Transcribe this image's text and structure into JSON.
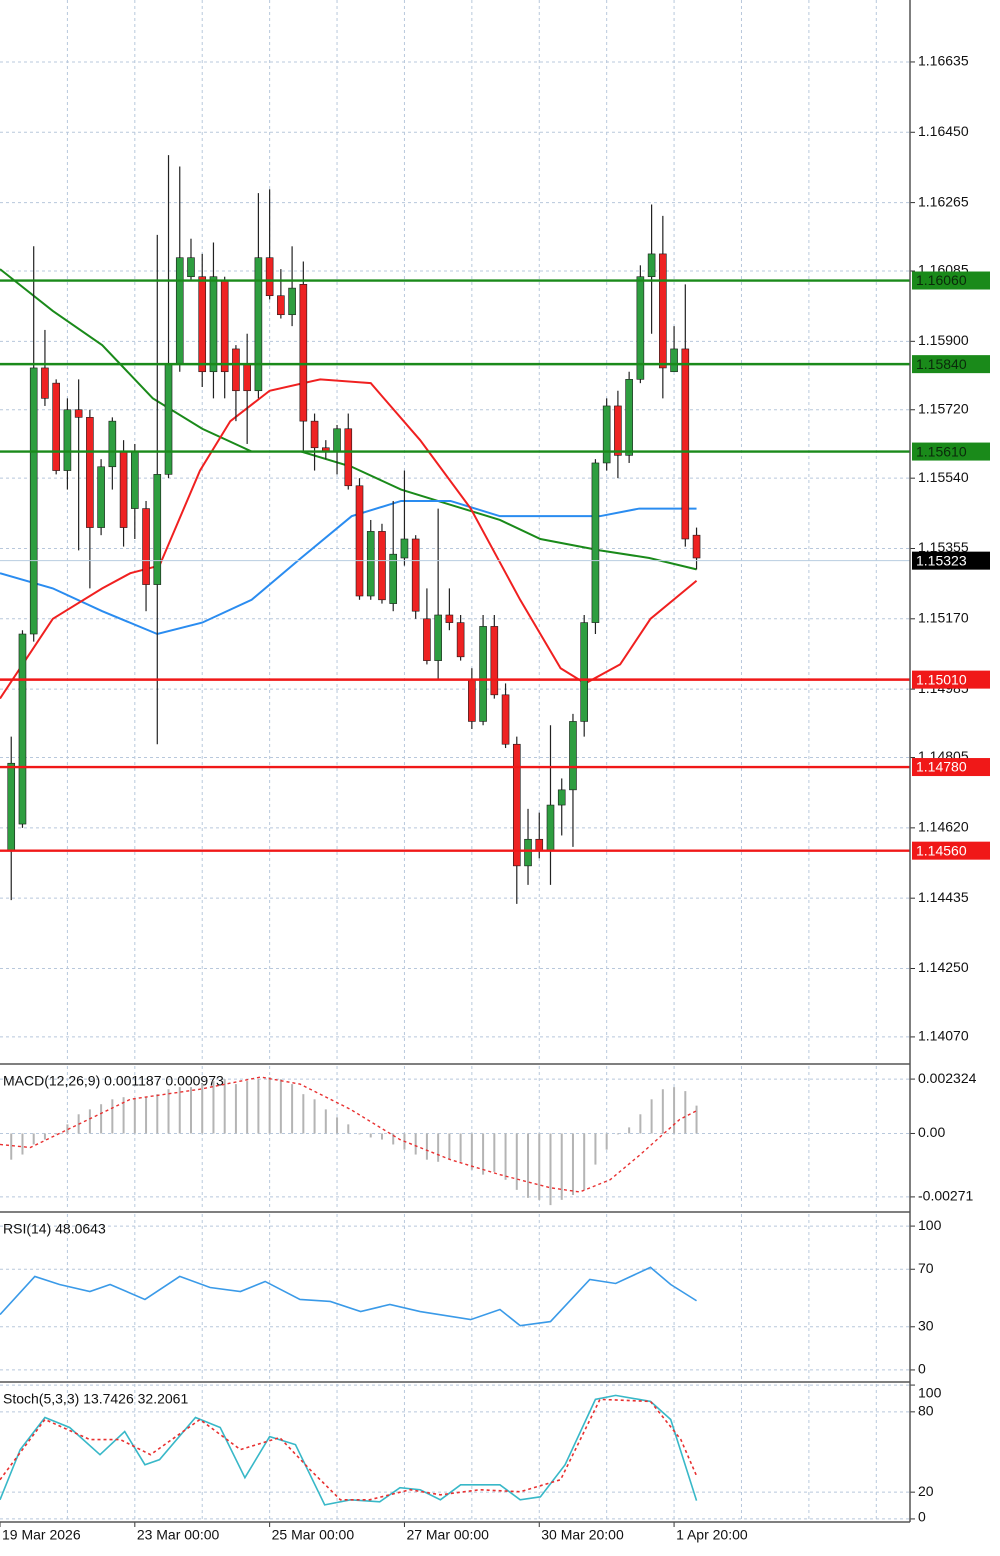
{
  "chart_data": [
    {
      "type": "candlestick",
      "xlim": [
        -1,
        80
      ],
      "ylim": [
        1.14004,
        1.16798
      ],
      "xticks": [
        {
          "value": -1,
          "label": "19 Mar 2026"
        },
        {
          "value": 11,
          "label": "23 Mar 00:00"
        },
        {
          "value": 23,
          "label": "25 Mar 00:00"
        },
        {
          "value": 35,
          "label": "27 Mar 00:00"
        },
        {
          "value": 47,
          "label": "30 Mar 20:00"
        },
        {
          "value": 59,
          "label": "1 Apr 20:00"
        }
      ],
      "xgrid": [
        5,
        11,
        17,
        23,
        29,
        35,
        41,
        47,
        53,
        59,
        65,
        71,
        77
      ],
      "yticks": [
        1.16635,
        {
          "value": 1.1645,
          "label": "1.16450"
        },
        1.16265,
        1.16085,
        {
          "value": 1.159,
          "label": "1.15900"
        },
        {
          "value": 1.1572,
          "label": "1.15720"
        },
        {
          "value": 1.1554,
          "label": "1.15540"
        },
        1.15355,
        {
          "value": 1.1517,
          "label": "1.15170"
        },
        1.14985,
        1.14805,
        {
          "value": 1.1462,
          "label": "1.14620"
        },
        1.14435,
        {
          "value": 1.1425,
          "label": "1.14250"
        },
        {
          "value": 1.1407,
          "label": "1.14070"
        }
      ],
      "up_color": "#2e9e40",
      "down_color": "#ee2222",
      "open": [
        1.1456,
        1.1463,
        1.1513,
        1.1583,
        1.1579,
        1.1556,
        1.1572,
        1.157,
        1.1541,
        1.1557,
        1.1561,
        1.1546,
        1.1546,
        1.1526,
        1.1555,
        1.1584,
        1.1607,
        1.1607,
        1.1582,
        1.1606,
        1.1588,
        1.1584,
        1.1577,
        1.1612,
        1.1602,
        1.1597,
        1.1605,
        1.1569,
        1.1562,
        1.1561,
        1.1567,
        1.1552,
        1.1523,
        1.154,
        1.1521,
        1.1533,
        1.1538,
        1.1517,
        1.1506,
        1.1518,
        1.1516,
        1.1501,
        1.149,
        1.1515,
        1.1497,
        1.1484,
        1.1452,
        1.1459,
        1.1456,
        1.1468,
        1.1472,
        1.149,
        1.1516,
        1.1558,
        1.1573,
        1.156,
        1.158,
        1.1607,
        1.1613,
        1.1582,
        1.1588,
        1.1539
      ],
      "high": [
        1.1486,
        1.1514,
        1.1615,
        1.1593,
        1.158,
        1.1575,
        1.158,
        1.1572,
        1.1559,
        1.157,
        1.1564,
        1.1563,
        1.1548,
        1.1618,
        1.1639,
        1.1636,
        1.1617,
        1.1613,
        1.1616,
        1.1607,
        1.1589,
        1.1592,
        1.1629,
        1.163,
        1.1609,
        1.1615,
        1.1611,
        1.1571,
        1.1564,
        1.1568,
        1.1571,
        1.1554,
        1.1543,
        1.1542,
        1.1548,
        1.1556,
        1.1539,
        1.1525,
        1.1546,
        1.1525,
        1.1518,
        1.1504,
        1.1518,
        1.1518,
        1.15,
        1.1486,
        1.1467,
        1.1466,
        1.1489,
        1.1475,
        1.1492,
        1.1518,
        1.1559,
        1.1575,
        1.1577,
        1.1582,
        1.161,
        1.1626,
        1.1623,
        1.1594,
        1.1605,
        1.1541
      ],
      "low": [
        1.1443,
        1.1462,
        1.1511,
        1.1573,
        1.1555,
        1.1551,
        1.1535,
        1.1525,
        1.1539,
        1.1551,
        1.1536,
        1.1538,
        1.1519,
        1.1484,
        1.1554,
        1.1582,
        1.1606,
        1.1578,
        1.1575,
        1.1575,
        1.1569,
        1.1563,
        1.1575,
        1.1601,
        1.1596,
        1.1594,
        1.1561,
        1.1556,
        1.1559,
        1.1555,
        1.1551,
        1.1522,
        1.1522,
        1.1521,
        1.1519,
        1.1531,
        1.1517,
        1.1505,
        1.1501,
        1.1514,
        1.1506,
        1.1488,
        1.1489,
        1.1496,
        1.1483,
        1.1442,
        1.1447,
        1.1454,
        1.1447,
        1.146,
        1.1457,
        1.1486,
        1.1513,
        1.1556,
        1.1554,
        1.1558,
        1.1579,
        1.1592,
        1.1575,
        1.1582,
        1.1536,
        1.153
      ],
      "close": [
        1.1479,
        1.1513,
        1.1583,
        1.1575,
        1.1556,
        1.1572,
        1.157,
        1.1541,
        1.1557,
        1.1569,
        1.1541,
        1.1561,
        1.1526,
        1.1555,
        1.1584,
        1.1612,
        1.1612,
        1.1582,
        1.1607,
        1.1582,
        1.1577,
        1.1577,
        1.1612,
        1.1602,
        1.1597,
        1.1604,
        1.1569,
        1.1562,
        1.1561,
        1.1567,
        1.1552,
        1.1523,
        1.154,
        1.1522,
        1.1534,
        1.1538,
        1.1519,
        1.1506,
        1.1518,
        1.1516,
        1.1507,
        1.149,
        1.1515,
        1.1497,
        1.1484,
        1.1452,
        1.1459,
        1.1456,
        1.1468,
        1.1472,
        1.149,
        1.1516,
        1.1558,
        1.1573,
        1.156,
        1.158,
        1.1607,
        1.1613,
        1.1583,
        1.1588,
        1.1538,
        1.1533
      ],
      "lines": [
        {
          "color": "#1a8a1a",
          "x": [
            -1,
            3.7,
            8.1,
            12.6,
            17,
            21.4,
            25.8,
            30.3,
            34.7,
            39.1,
            43.5,
            47.1,
            52.4,
            56.8,
            61
          ],
          "values": [
            1.1609,
            1.1598,
            1.1589,
            1.1575,
            1.1567,
            1.1561,
            1.1561,
            1.1557,
            1.1551,
            1.1547,
            1.1543,
            1.1538,
            1.1535,
            1.1533,
            1.153
          ]
        },
        {
          "color": "#2a8cf0",
          "x": [
            -1,
            3.7,
            8.1,
            13,
            17,
            21.4,
            25.8,
            30.3,
            34.7,
            39.1,
            43.5,
            48,
            52.4,
            55.9,
            61
          ],
          "values": [
            1.1529,
            1.1525,
            1.1519,
            1.1513,
            1.1516,
            1.1522,
            1.1533,
            1.1544,
            1.1548,
            1.1548,
            1.1544,
            1.1544,
            1.1544,
            1.1546,
            1.1546
          ]
        },
        {
          "color": "#f02020",
          "x": [
            -1,
            3.7,
            8.1,
            10.6,
            13.2,
            16.8,
            19.5,
            23,
            27.5,
            32,
            36.4,
            40.9,
            45.3,
            48.9,
            51.1,
            54.2,
            56.9,
            61
          ],
          "values": [
            1.1496,
            1.1517,
            1.1525,
            1.1529,
            1.1531,
            1.1556,
            1.1569,
            1.1577,
            1.158,
            1.1579,
            1.1564,
            1.1546,
            1.1522,
            1.1504,
            1.15,
            1.1505,
            1.1517,
            1.1527
          ]
        }
      ],
      "levels": [
        {
          "value": 1.1606,
          "label": "1.16060",
          "color": "#1a8a1a"
        },
        {
          "value": 1.1584,
          "label": "1.15840",
          "color": "#1a8a1a"
        },
        {
          "value": 1.1561,
          "label": "1.15610",
          "color": "#1a8a1a"
        },
        {
          "value": 1.1501,
          "label": "1.15010",
          "color": "#f01818"
        },
        {
          "value": 1.1478,
          "label": "1.14780",
          "color": "#f01818"
        },
        {
          "value": 1.1456,
          "label": "1.14560",
          "color": "#f01818"
        }
      ],
      "last": 1.15323
    },
    {
      "type": "macd",
      "title": "MACD(12,26,9) 0.001187 0.000973",
      "ylim": [
        -0.00327,
        0.002883
      ],
      "yticks": [
        0.002324,
        {
          "value": 0,
          "label": "0.00"
        },
        -0.00271
      ],
      "color": "#b4b4b4",
      "values": [
        -0.00112,
        -0.0009,
        -0.00047,
        -0.00026,
        -4e-05,
        0.00039,
        0.00082,
        0.00103,
        0.00125,
        0.00146,
        0.00155,
        0.00146,
        0.00155,
        0.00168,
        0.00189,
        0.00198,
        0.00198,
        0.00211,
        0.00224,
        0.00232,
        0.00211,
        0.00224,
        0.00232,
        0.00241,
        0.00232,
        0.00211,
        0.00168,
        0.00146,
        0.00103,
        0.00069,
        0.00039,
        -4e-05,
        -0.00017,
        -0.00026,
        -0.00047,
        -0.00069,
        -0.0009,
        -0.00112,
        -0.00121,
        -0.00112,
        -0.00121,
        -0.00155,
        -0.00176,
        -0.00164,
        -0.00198,
        -0.00241,
        -0.00275,
        -0.00284,
        -0.00306,
        -0.00284,
        -0.00263,
        -0.00241,
        -0.00133,
        -0.00069,
        -4e-05,
        0.00026,
        0.00082,
        0.00146,
        0.00189,
        0.00198,
        0.00181,
        0.00119
      ],
      "signal": {
        "color": "#e83030",
        "x": [
          -1,
          1.7,
          10.6,
          16.8,
          22.2,
          25.7,
          30.2,
          34.6,
          39.1,
          43.5,
          48,
          50.6,
          53.3,
          56,
          59.5,
          61
        ],
        "values": [
          -0.00047,
          -0.0006,
          0.00146,
          0.00189,
          0.00241,
          0.00211,
          0.00103,
          -0.00026,
          -0.00112,
          -0.00176,
          -0.00232,
          -0.0025,
          -0.00198,
          -0.0009,
          0.0006,
          0.00097
        ]
      }
    },
    {
      "type": "line",
      "title": "RSI(14) 48.0643",
      "ylim": [
        -7,
        108.4
      ],
      "yticks": [
        100,
        70,
        30,
        0
      ],
      "color": "#3a9ae8",
      "x": [
        -1,
        2.1,
        4.3,
        7,
        8.8,
        11.9,
        15,
        17.7,
        20.4,
        22.6,
        25.7,
        28.4,
        31.1,
        33.7,
        36.4,
        40.9,
        43.5,
        45.3,
        48,
        51.5,
        53.8,
        56.9,
        58.7,
        61
      ],
      "values": [
        38.5,
        65.0,
        59.4,
        54.5,
        59.4,
        49.0,
        65.0,
        57.3,
        54.5,
        61.5,
        49.0,
        47.6,
        40.6,
        45.5,
        40.6,
        35.0,
        42.0,
        30.8,
        33.6,
        62.9,
        60.1,
        71.3,
        59.4,
        48.1
      ]
    },
    {
      "type": "stoch",
      "title": "Stoch(5,3,3) 13.7426 32.2061",
      "ylim": [
        -0.8,
        100.8
      ],
      "yticks": [
        100,
        80,
        20,
        0
      ],
      "series": [
        {
          "color": "#38b8c8",
          "x": [
            -1,
            0.8,
            3,
            5.2,
            7.9,
            10.1,
            11.9,
            13.2,
            16.4,
            18.6,
            20.8,
            23,
            25.3,
            27.9,
            30.2,
            32.8,
            34.6,
            36.4,
            38.2,
            40,
            43.5,
            45.3,
            47.1,
            49.3,
            52,
            53.8,
            56.9,
            58.7,
            61
          ],
          "values": [
            14.3,
            51.8,
            75.8,
            68.3,
            48.0,
            65.3,
            40.5,
            44.3,
            75.8,
            68.3,
            30.8,
            61.5,
            55.5,
            10.5,
            14.3,
            12.8,
            23.3,
            21.8,
            14.3,
            25.5,
            25.5,
            14.3,
            16.5,
            40.5,
            89.3,
            92.3,
            87.8,
            74.3,
            13.7
          ]
        },
        {
          "color": "#e83030",
          "dashed": true,
          "x": [
            -1,
            3,
            7,
            9.7,
            12.4,
            16.8,
            20.4,
            23.9,
            26.6,
            29.3,
            31.9,
            35.5,
            38.2,
            41.7,
            45.3,
            48.9,
            52.4,
            56.9,
            59.6,
            61
          ],
          "values": [
            29.3,
            74.3,
            59.3,
            59.3,
            48.0,
            74.3,
            51.8,
            60.8,
            36.8,
            14.3,
            14.3,
            21.8,
            18.0,
            21.8,
            20.3,
            29.3,
            89.3,
            87.8,
            59.3,
            32.2
          ]
        }
      ]
    }
  ]
}
